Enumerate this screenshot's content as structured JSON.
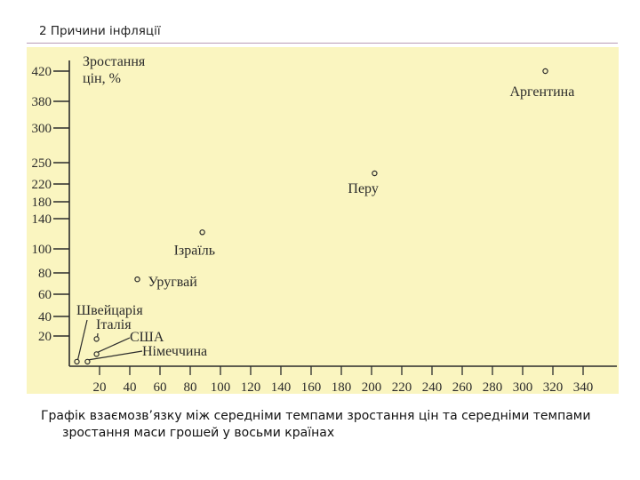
{
  "slide": {
    "heading": "2 Причини інфляції"
  },
  "caption": "Графік взаємозв’язку між середніми темпами зростання цін та середніми темпами зростання маси грошей у восьми країнах",
  "colors": {
    "plot_bg": "#faf5c0",
    "ink": "#2b2b2b"
  },
  "chart_data": {
    "type": "scatter",
    "ylabel_line1": "Зростання",
    "ylabel_line2": "цін, %",
    "xlim": [
      0,
      340
    ],
    "x_ticks": [
      20,
      40,
      60,
      80,
      100,
      120,
      140,
      160,
      180,
      200,
      220,
      240,
      260,
      280,
      300,
      320,
      340
    ],
    "y_ticks": [
      20,
      40,
      60,
      80,
      100,
      140,
      180,
      220,
      250,
      300,
      380,
      420
    ],
    "points": [
      {
        "label": "Аргентина",
        "x": 315,
        "y": 420
      },
      {
        "label": "Перу",
        "x": 202,
        "y": 235
      },
      {
        "label": "Ізраїль",
        "x": 88,
        "y": 122
      },
      {
        "label": "Уругвай",
        "x": 45,
        "y": 74
      },
      {
        "label": "Швейцарія",
        "x": 5,
        "y": 3
      },
      {
        "label": "Італія",
        "x": 18,
        "y": 18
      },
      {
        "label": "США",
        "x": 18,
        "y": 8
      },
      {
        "label": "Німеччина",
        "x": 12,
        "y": 3
      }
    ]
  }
}
